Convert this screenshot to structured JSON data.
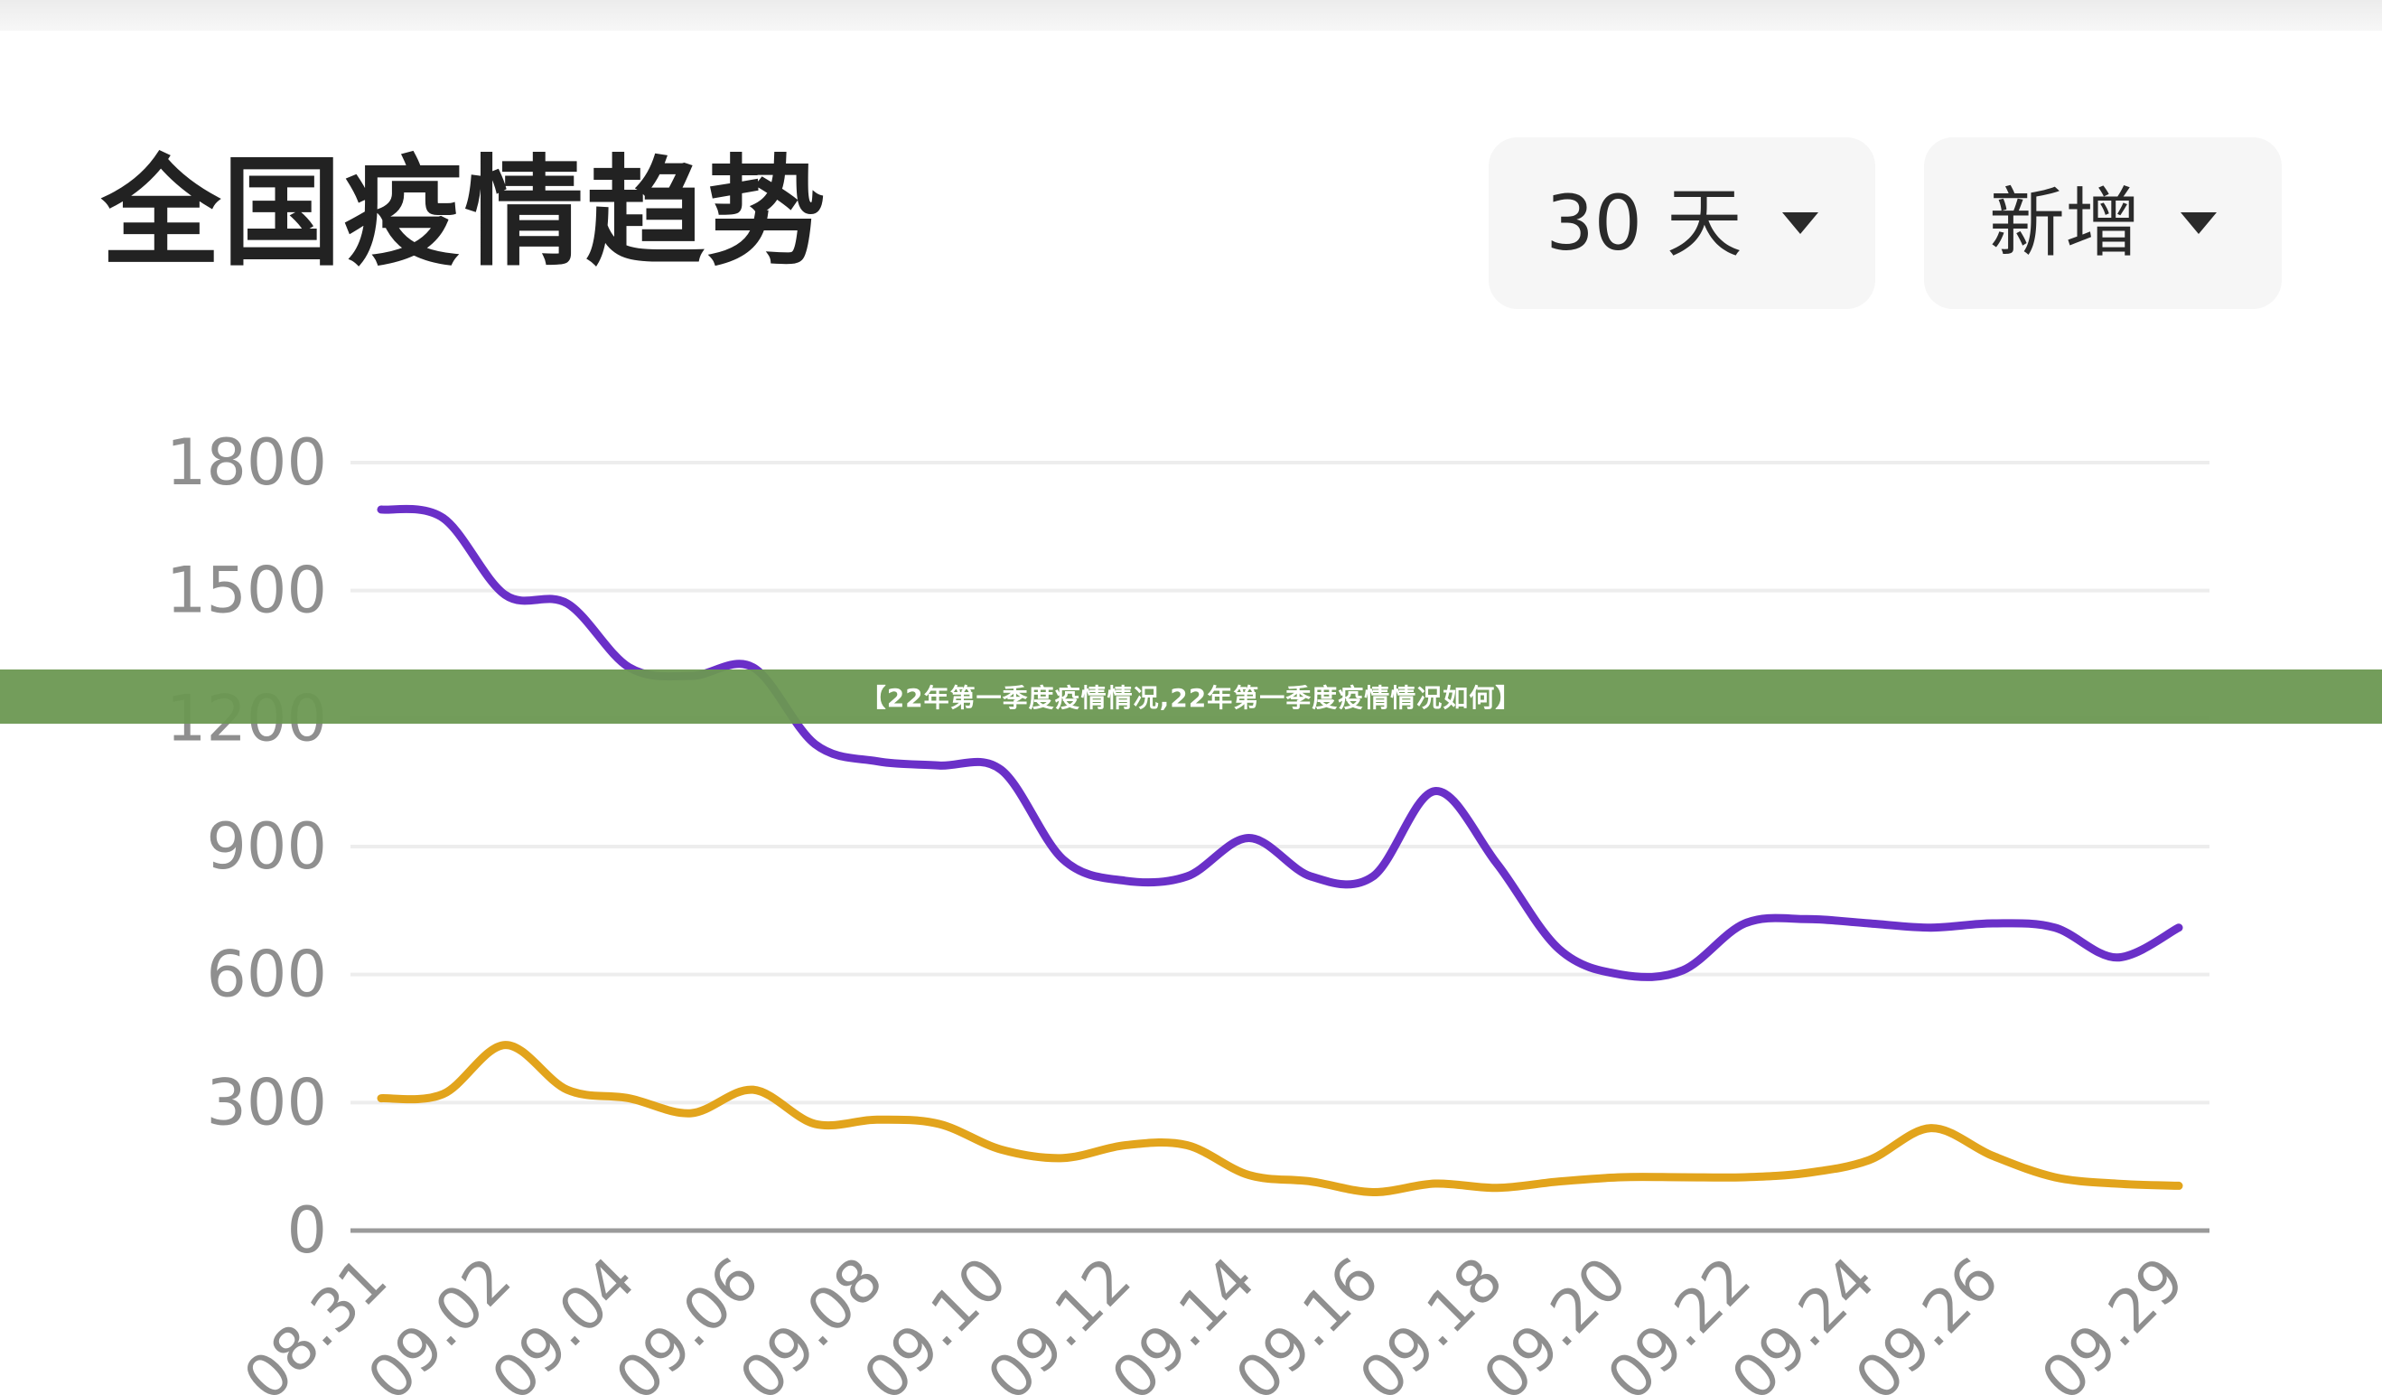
{
  "header": {
    "title": "全国疫情趋势",
    "range_select": {
      "value": "30 天",
      "icon": "caret-down-icon"
    },
    "metric_select": {
      "value": "新增",
      "icon": "caret-down-icon"
    }
  },
  "banner": {
    "text": "【22年第一季度疫情情况,22年第一季度疫情情况如何】"
  },
  "chart_data": {
    "type": "line",
    "title": "",
    "xlabel": "",
    "ylabel": "",
    "ylim": [
      0,
      1800
    ],
    "yticks": [
      0,
      300,
      600,
      900,
      1200,
      1500,
      1800
    ],
    "grid": true,
    "x": [
      "08.31",
      "09.01",
      "09.02",
      "09.03",
      "09.04",
      "09.05",
      "09.06",
      "09.07",
      "09.08",
      "09.09",
      "09.10",
      "09.11",
      "09.12",
      "09.13",
      "09.14",
      "09.15",
      "09.16",
      "09.17",
      "09.18",
      "09.19",
      "09.20",
      "09.21",
      "09.22",
      "09.23",
      "09.24",
      "09.25",
      "09.26",
      "09.27",
      "09.28",
      "09.29"
    ],
    "xtick_labels": [
      "08.31",
      "09.02",
      "09.04",
      "09.06",
      "09.08",
      "09.10",
      "09.12",
      "09.14",
      "09.16",
      "09.18",
      "09.20",
      "09.22",
      "09.24",
      "09.26",
      "09.29"
    ],
    "series": [
      {
        "color": "#6a30c8",
        "values": [
          1690,
          1670,
          1490,
          1470,
          1320,
          1300,
          1320,
          1140,
          1100,
          1090,
          1080,
          870,
          820,
          830,
          920,
          830,
          830,
          1030,
          860,
          660,
          600,
          610,
          720,
          730,
          720,
          710,
          720,
          710,
          640,
          710
        ]
      },
      {
        "color": "#e2a41c",
        "values": [
          310,
          320,
          435,
          330,
          310,
          275,
          330,
          250,
          260,
          250,
          190,
          170,
          200,
          200,
          130,
          115,
          90,
          110,
          100,
          115,
          125,
          125,
          125,
          135,
          165,
          240,
          175,
          125,
          110,
          105
        ]
      }
    ]
  }
}
